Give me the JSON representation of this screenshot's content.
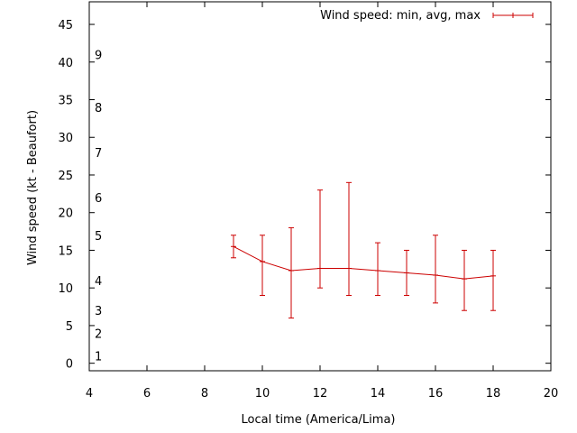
{
  "chart_data": {
    "type": "line",
    "title": "",
    "xlabel": "Local time (America/Lima)",
    "ylabel": "Wind speed (kt - Beaufort)",
    "xlim": [
      4,
      20
    ],
    "ylim": [
      -1,
      48
    ],
    "x_ticks": [
      4,
      6,
      8,
      10,
      12,
      14,
      16,
      18,
      20
    ],
    "y_ticks": [
      0,
      5,
      10,
      15,
      20,
      25,
      30,
      35,
      40,
      45
    ],
    "beaufort_labels": [
      {
        "label": "1",
        "y": 1
      },
      {
        "label": "2",
        "y": 4
      },
      {
        "label": "3",
        "y": 7
      },
      {
        "label": "4",
        "y": 11
      },
      {
        "label": "5",
        "y": 17
      },
      {
        "label": "6",
        "y": 22
      },
      {
        "label": "7",
        "y": 28
      },
      {
        "label": "8",
        "y": 34
      },
      {
        "label": "9",
        "y": 41
      }
    ],
    "legend": {
      "label": "Wind speed: min, avg, max",
      "position": "top-right"
    },
    "series": [
      {
        "name": "Wind speed: min, avg, max",
        "color": "#cc0000",
        "x": [
          9,
          10,
          11,
          12,
          13,
          14,
          15,
          16,
          17,
          18
        ],
        "avg": [
          15.5,
          13.5,
          12.3,
          12.6,
          12.6,
          12.3,
          12.0,
          11.7,
          11.2,
          11.6
        ],
        "min": [
          14,
          9,
          6,
          10,
          9,
          9,
          9,
          8,
          7,
          7
        ],
        "max": [
          17,
          17,
          18,
          23,
          24,
          16,
          15,
          17,
          15,
          15
        ]
      }
    ]
  }
}
